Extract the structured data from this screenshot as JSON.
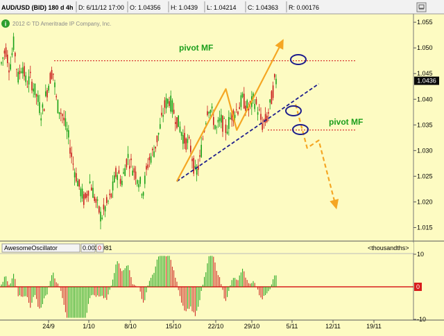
{
  "colors": {
    "background": "#fdfbc2",
    "up_candle": "#16a016",
    "down_candle": "#c81818",
    "pivot_line": "#d22020",
    "trend_line": "#1c1c8c",
    "projection": "#f5a623",
    "annotation_text": "#1b9e1b",
    "highlight_ellipse": "#1c1c8c",
    "price_tag": "#0a0a0a",
    "osc_zero": "#d81c1c"
  },
  "header": {
    "symbol": "AUD/USD (BID) 180 d 4h",
    "date": "D: 6/11/12 17:00",
    "open": "O: 1.04356",
    "high": "H: 1.0439",
    "low": "L: 1.04214",
    "close": "C: 1.04363",
    "range": "R: 0.00176"
  },
  "copyright": "2012 © TD Ameritrade IP Company, Inc.",
  "info_icon": "info-icon",
  "window_icon": "window-icon",
  "last_price": "1.0436",
  "annotations": {
    "pivot_top": "pivot MF",
    "pivot_right": "pivot MF"
  },
  "oscillator": {
    "name": "AwesomeOscillator",
    "value": "0.0034981",
    "signal": "0",
    "units": "<thousandths>",
    "zero_label": "0"
  },
  "chart_data": [
    {
      "type": "candlestick",
      "series": [
        {
          "name": "AUD/USD (BID) 180 d 4h",
          "summary": {
            "high": 1.052,
            "low": 1.015,
            "last": 1.0436
          }
        }
      ],
      "x_ticks": [
        "24/9",
        "1/10",
        "8/10",
        "15/10",
        "22/10",
        "29/10",
        "5/11",
        "12/11",
        "19/11"
      ],
      "y_ticks": [
        1.015,
        1.02,
        1.025,
        1.03,
        1.035,
        1.04,
        1.045,
        1.05,
        1.055
      ],
      "ylim": [
        1.0125,
        1.0565
      ],
      "grid": false,
      "annotations": [
        {
          "text": "pivot MF",
          "level": 1.0475
        },
        {
          "text": "pivot MF",
          "level": 1.034
        }
      ],
      "trendline": {
        "from": [
          "19/10",
          1.024
        ],
        "to": [
          "6/11",
          1.043
        ]
      },
      "bullish_projection": [
        [
          "19/10",
          1.024
        ],
        [
          "28/10",
          1.042
        ],
        [
          "30/10",
          1.034
        ],
        [
          "7/11",
          1.0515
        ]
      ],
      "bearish_projection": [
        [
          "2/11",
          1.039
        ],
        [
          "4/11",
          1.0305
        ],
        [
          "6/11",
          1.032
        ],
        [
          "9/11",
          1.0188
        ]
      ]
    },
    {
      "type": "bar",
      "name": "AwesomeOscillator",
      "ylim": [
        -10,
        10
      ],
      "y_ticks": [
        10,
        0,
        -10
      ],
      "last": 3.4981
    }
  ]
}
